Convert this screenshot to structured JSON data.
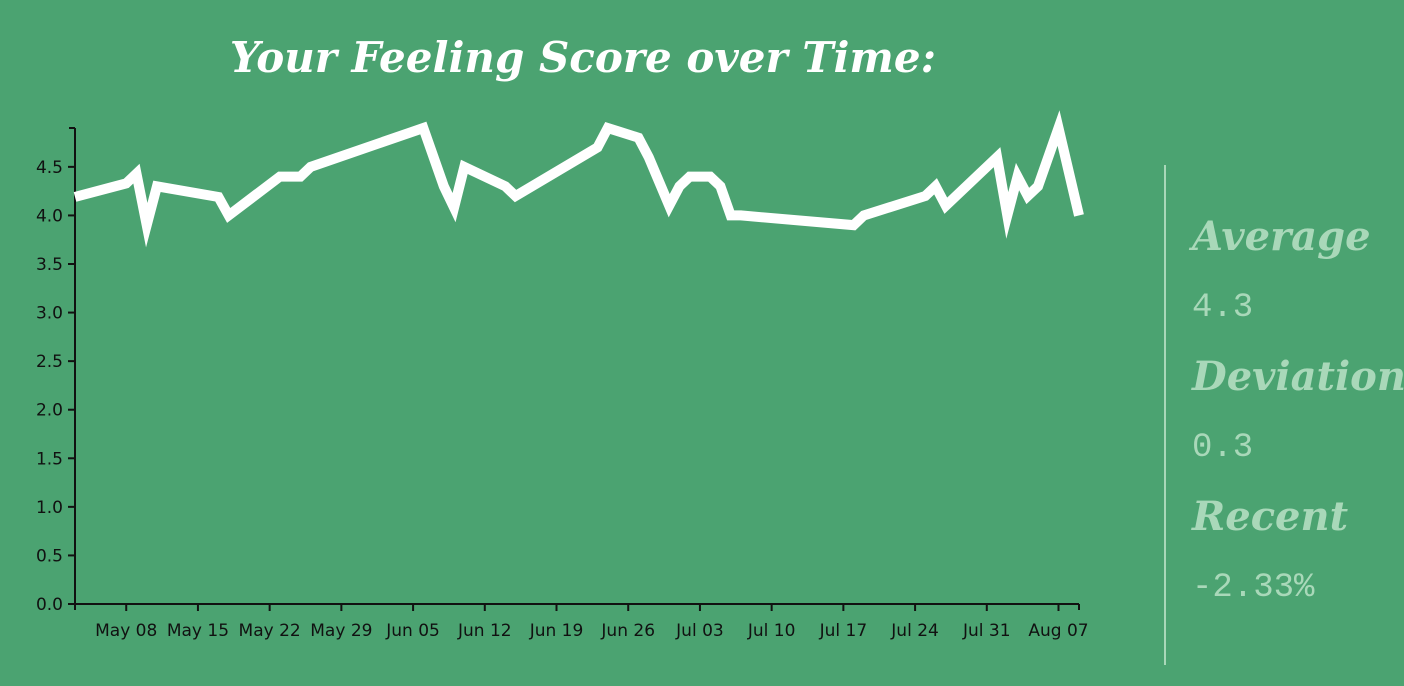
{
  "chart_data": {
    "type": "line",
    "title": "Your Feeling Score over Time:",
    "x": [
      "05-03",
      "05-08",
      "05-09",
      "05-10",
      "05-11",
      "05-17",
      "05-18",
      "05-23",
      "05-25",
      "05-26",
      "06-06",
      "06-08",
      "06-09",
      "06-10",
      "06-14",
      "06-15",
      "06-23",
      "06-24",
      "06-27",
      "06-28",
      "06-30",
      "07-01",
      "07-02",
      "07-04",
      "07-05",
      "07-06",
      "07-07",
      "07-18",
      "07-19",
      "07-25",
      "07-26",
      "07-27",
      "08-01",
      "08-02",
      "08-03",
      "08-04",
      "08-05",
      "08-07",
      "08-09"
    ],
    "series": [
      {
        "name": "Feeling Score",
        "color": "#ffffff",
        "values": [
          4.19,
          4.33,
          4.43,
          3.9,
          4.3,
          4.19,
          4.0,
          4.4,
          4.4,
          4.5,
          4.9,
          4.3,
          4.08,
          4.5,
          4.3,
          4.2,
          4.7,
          4.9,
          4.8,
          4.6,
          4.1,
          4.3,
          4.4,
          4.4,
          4.3,
          4.0,
          4.0,
          3.9,
          4.0,
          4.2,
          4.3,
          4.1,
          4.6,
          4.0,
          4.4,
          4.2,
          4.3,
          4.9,
          4.0
        ]
      }
    ],
    "xlim": [
      "05-03",
      "08-09"
    ],
    "xticks": [
      {
        "value": "05-08",
        "label": "May 08"
      },
      {
        "value": "05-15",
        "label": "May 15"
      },
      {
        "value": "05-22",
        "label": "May 22"
      },
      {
        "value": "05-29",
        "label": "May 29"
      },
      {
        "value": "06-05",
        "label": "Jun 05"
      },
      {
        "value": "06-12",
        "label": "Jun 12"
      },
      {
        "value": "06-19",
        "label": "Jun 19"
      },
      {
        "value": "06-26",
        "label": "Jun 26"
      },
      {
        "value": "07-03",
        "label": "Jul 03"
      },
      {
        "value": "07-10",
        "label": "Jul 10"
      },
      {
        "value": "07-17",
        "label": "Jul 17"
      },
      {
        "value": "07-24",
        "label": "Jul 24"
      },
      {
        "value": "07-31",
        "label": "Jul 31"
      },
      {
        "value": "08-07",
        "label": "Aug 07"
      }
    ],
    "ylim": [
      0,
      4.9
    ],
    "yticks": [
      {
        "value": 0,
        "label": "0.0"
      },
      0.5,
      {
        "value": 1,
        "label": "1.0"
      },
      1.5,
      {
        "value": 2,
        "label": "2.0"
      },
      2.5,
      {
        "value": 3,
        "label": "3.0"
      },
      3.5,
      {
        "value": 4,
        "label": "4.0"
      },
      4.5
    ],
    "grid": false
  },
  "stats": [
    {
      "label": "Average",
      "value": "4.3"
    },
    {
      "label": "Deviation",
      "value": "0.3"
    },
    {
      "label": "Recent",
      "value": "-2.33%"
    }
  ]
}
